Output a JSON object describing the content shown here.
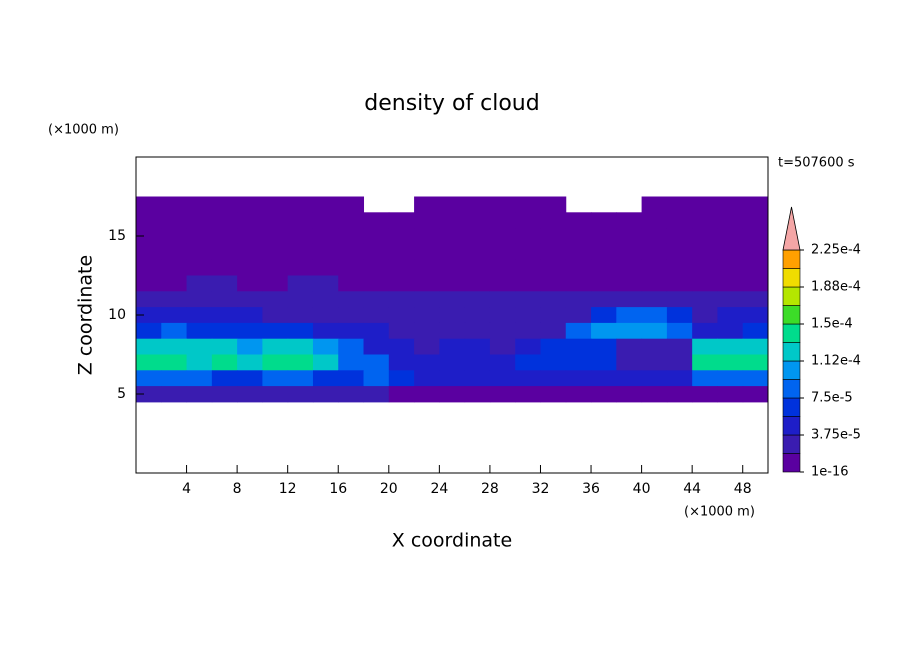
{
  "chart_data": {
    "type": "contour",
    "title": "density of cloud",
    "xlabel": "X coordinate",
    "ylabel": "Z coordinate",
    "xunit": "(×1000 m)",
    "yunit": "(×1000 m)",
    "annotation": "t=507600 s",
    "xlim": [
      0,
      50
    ],
    "ylim": [
      0,
      20
    ],
    "xticks": [
      4,
      8,
      12,
      16,
      20,
      24,
      28,
      32,
      36,
      40,
      44,
      48
    ],
    "yticks": [
      5,
      10,
      15
    ],
    "x": [
      1,
      3,
      5,
      7,
      9,
      11,
      13,
      15,
      17,
      19,
      21,
      23,
      25,
      27,
      29,
      31,
      33,
      35,
      37,
      39,
      41,
      43,
      45,
      47,
      49
    ],
    "y": [
      17,
      16,
      15,
      14,
      13,
      12,
      11,
      10,
      9,
      8,
      7,
      6,
      5
    ],
    "z": [
      [
        1e-05,
        1e-05,
        1e-05,
        1e-05,
        1e-05,
        1e-05,
        1e-05,
        1e-05,
        1e-05,
        null,
        null,
        1e-05,
        1e-05,
        1e-05,
        1e-05,
        1e-05,
        1e-05,
        null,
        null,
        null,
        1e-05,
        1e-05,
        1e-05,
        1e-05,
        1e-05
      ],
      [
        1e-05,
        1e-05,
        1e-05,
        1e-05,
        1e-05,
        1e-05,
        1e-05,
        1e-05,
        1e-05,
        1e-05,
        1e-05,
        1e-05,
        1e-05,
        1e-05,
        1e-05,
        1e-05,
        1e-05,
        1e-05,
        1e-05,
        1e-05,
        1e-05,
        1e-05,
        1e-05,
        1e-05,
        1e-05
      ],
      [
        1e-05,
        1e-05,
        1e-05,
        1e-05,
        1e-05,
        1e-05,
        1e-05,
        1e-05,
        1e-05,
        1e-05,
        1e-05,
        1e-05,
        1e-05,
        1e-05,
        1e-05,
        1e-05,
        1e-05,
        1e-05,
        1e-05,
        1e-05,
        1e-05,
        1e-05,
        1e-05,
        1e-05,
        1e-05
      ],
      [
        1e-05,
        1e-05,
        1e-05,
        1e-05,
        1e-05,
        1e-05,
        1e-05,
        1e-05,
        1e-05,
        1e-05,
        1e-05,
        1e-05,
        1e-05,
        1e-05,
        1e-05,
        1e-05,
        1e-05,
        1e-05,
        1e-05,
        1e-05,
        1e-05,
        1e-05,
        1e-05,
        1e-05,
        1e-05
      ],
      [
        1e-05,
        1e-05,
        1e-05,
        1e-05,
        1e-05,
        1e-05,
        1e-05,
        1e-05,
        1e-05,
        1e-05,
        1e-05,
        1e-05,
        1e-05,
        1e-05,
        1e-05,
        1e-05,
        1e-05,
        1e-05,
        1e-05,
        1e-05,
        1e-05,
        1e-05,
        1e-05,
        1e-05,
        1e-05
      ],
      [
        1e-05,
        1e-05,
        2.5e-05,
        2.5e-05,
        1e-05,
        1e-05,
        2.5e-05,
        2.5e-05,
        1e-05,
        1e-05,
        1e-05,
        1e-05,
        1e-05,
        1e-05,
        1e-05,
        1e-05,
        1e-05,
        1e-05,
        1e-05,
        1e-05,
        1e-05,
        1e-05,
        1e-05,
        1e-05,
        1e-05
      ],
      [
        2.5e-05,
        2.5e-05,
        2.5e-05,
        2.5e-05,
        2.5e-05,
        2.5e-05,
        2.5e-05,
        2.5e-05,
        2.5e-05,
        2.5e-05,
        2.5e-05,
        2.5e-05,
        2.5e-05,
        2.5e-05,
        2.5e-05,
        2.5e-05,
        2.5e-05,
        2.5e-05,
        2.5e-05,
        2.5e-05,
        2.5e-05,
        2.5e-05,
        2.5e-05,
        2.5e-05,
        2.5e-05
      ],
      [
        4.5e-05,
        4.5e-05,
        4.5e-05,
        4.5e-05,
        4.5e-05,
        2.5e-05,
        2.5e-05,
        2.5e-05,
        2.5e-05,
        2.5e-05,
        2.5e-05,
        2.5e-05,
        2.5e-05,
        2.5e-05,
        2.5e-05,
        2.5e-05,
        2.5e-05,
        2.5e-05,
        6.5e-05,
        8.5e-05,
        8.5e-05,
        6.5e-05,
        2.5e-05,
        4.5e-05,
        4.5e-05
      ],
      [
        6.5e-05,
        8.5e-05,
        6.5e-05,
        6.5e-05,
        6.5e-05,
        6.5e-05,
        6.5e-05,
        4.5e-05,
        4.5e-05,
        4.5e-05,
        2.5e-05,
        2.5e-05,
        2.5e-05,
        2.5e-05,
        2.5e-05,
        2.5e-05,
        2.5e-05,
        8.5e-05,
        0.0001,
        0.0001,
        0.0001,
        8.5e-05,
        4.5e-05,
        4.5e-05,
        6.5e-05
      ],
      [
        0.00012,
        0.00012,
        0.00012,
        0.00012,
        0.0001,
        0.00012,
        0.00012,
        0.0001,
        8.5e-05,
        4.5e-05,
        4.5e-05,
        2.5e-05,
        4.5e-05,
        4.5e-05,
        2.5e-05,
        4.5e-05,
        6.5e-05,
        6.5e-05,
        6.5e-05,
        2.5e-05,
        2.5e-05,
        2.5e-05,
        0.00012,
        0.00012,
        0.00012
      ],
      [
        0.00014,
        0.00014,
        0.00012,
        0.00014,
        0.00012,
        0.00014,
        0.00014,
        0.00012,
        8.5e-05,
        8.5e-05,
        4.5e-05,
        4.5e-05,
        4.5e-05,
        4.5e-05,
        4.5e-05,
        6.5e-05,
        6.5e-05,
        6.5e-05,
        6.5e-05,
        2.5e-05,
        2.5e-05,
        2.5e-05,
        0.00014,
        0.00014,
        0.00014
      ],
      [
        8.5e-05,
        8.5e-05,
        8.5e-05,
        6.5e-05,
        6.5e-05,
        8.5e-05,
        8.5e-05,
        6.5e-05,
        6.5e-05,
        8.5e-05,
        6.5e-05,
        4.5e-05,
        4.5e-05,
        4.5e-05,
        4.5e-05,
        4.5e-05,
        4.5e-05,
        4.5e-05,
        4.5e-05,
        4.5e-05,
        4.5e-05,
        4.5e-05,
        8.5e-05,
        8.5e-05,
        8.5e-05
      ],
      [
        2.5e-05,
        2.5e-05,
        2.5e-05,
        2.5e-05,
        2.5e-05,
        2.5e-05,
        2.5e-05,
        2.5e-05,
        2.5e-05,
        2.5e-05,
        1e-05,
        1e-05,
        1e-05,
        1e-05,
        1e-05,
        1e-05,
        1e-05,
        1e-05,
        1e-05,
        1e-05,
        1e-05,
        1e-05,
        1e-05,
        1e-05,
        1e-05
      ]
    ],
    "levels": [
      1e-16,
      1.875e-05,
      3.75e-05,
      5.625e-05,
      7.5e-05,
      9.375e-05,
      0.0001125,
      0.00013125,
      0.00015,
      0.00016875,
      0.0001875,
      0.00020625,
      0.000225
    ],
    "colors": [
      "#5a00a0",
      "#3a1cb0",
      "#1e1ec8",
      "#0032dc",
      "#0064f0",
      "#0096f0",
      "#00c8c8",
      "#00dc8c",
      "#3cdc28",
      "#b4e600",
      "#f0dc00",
      "#ffa000",
      "#ff5a00",
      "#ee1e14"
    ],
    "over_color": "#f4a6a6",
    "colorbar_ticks": [
      {
        "value": 1e-16,
        "label": "1e-16"
      },
      {
        "value": 3.75e-05,
        "label": "3.75e-5"
      },
      {
        "value": 7.5e-05,
        "label": "7.5e-5"
      },
      {
        "value": 0.0001125,
        "label": "1.12e-4"
      },
      {
        "value": 0.00015,
        "label": "1.5e-4"
      },
      {
        "value": 0.0001875,
        "label": "1.88e-4"
      },
      {
        "value": 0.000225,
        "label": "2.25e-4"
      }
    ]
  }
}
